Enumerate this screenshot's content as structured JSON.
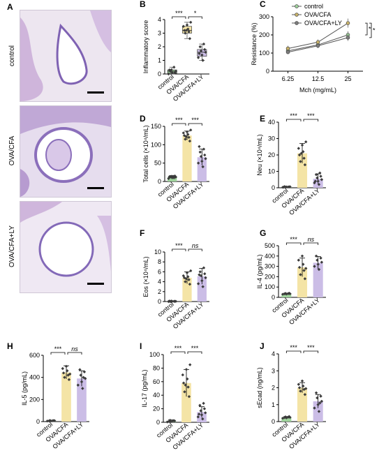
{
  "photo_panel": {
    "letter": "A",
    "rows": [
      "control",
      "OVA/CFA",
      "OVA/CFA+LY"
    ]
  },
  "colors": {
    "control": "#9fd39c",
    "ova_cfa": "#f4e4a6",
    "ova_cfa_ly": "#cbbde6",
    "dot": "#3b3b3b"
  },
  "chart_data": [
    {
      "id": "B",
      "type": "box",
      "ylabel": "Inflammatory score",
      "ylim": [
        0,
        4
      ],
      "yticks": [
        0,
        1,
        2,
        3,
        4
      ],
      "categories": [
        "control",
        "OVA/CFA",
        "OVA/CFA+LY"
      ],
      "boxes": [
        {
          "min": 0.0,
          "q1": 0.05,
          "median": 0.2,
          "q3": 0.3,
          "max": 0.5
        },
        {
          "min": 2.6,
          "q1": 3.0,
          "median": 3.2,
          "q3": 3.5,
          "max": 3.8
        },
        {
          "min": 1.0,
          "q1": 1.3,
          "median": 1.6,
          "q3": 1.8,
          "max": 2.2
        }
      ],
      "points": [
        [
          0.0,
          0.1,
          0.2,
          0.3,
          0.1,
          0.2,
          0.5,
          0.3
        ],
        [
          2.6,
          3.0,
          3.1,
          3.2,
          3.3,
          3.5,
          3.6,
          3.8,
          3.2
        ],
        [
          1.0,
          1.2,
          1.4,
          1.6,
          1.7,
          1.8,
          2.0,
          2.2,
          1.5
        ]
      ],
      "comparisons": [
        {
          "from": 0,
          "to": 1,
          "label": "***"
        },
        {
          "from": 1,
          "to": 2,
          "label": "*"
        }
      ]
    },
    {
      "id": "C",
      "type": "line",
      "xlabel": "Mch (mg/mL)",
      "ylabel": "Resistance (%)",
      "categories": [
        "6.25",
        "12.5",
        "25"
      ],
      "ylim": [
        0,
        300
      ],
      "yticks": [
        0,
        100,
        200,
        300
      ],
      "series": [
        {
          "name": "control",
          "values": [
            112,
            145,
            200
          ],
          "err": [
            15,
            15,
            20
          ],
          "color": "#9fd39c"
        },
        {
          "name": "OVA/CFA",
          "values": [
            125,
            160,
            265
          ],
          "err": [
            15,
            15,
            25
          ],
          "color": "#c9b36a"
        },
        {
          "name": "OVA/CFA+LY",
          "values": [
            105,
            140,
            185
          ],
          "err": [
            10,
            12,
            18
          ],
          "color": "#7d7d7d"
        }
      ],
      "comparisons": [
        {
          "from": 0,
          "to": 1,
          "label": "*"
        },
        {
          "from": 1,
          "to": 2,
          "label": "*"
        }
      ]
    },
    {
      "id": "D",
      "type": "bar",
      "ylabel": "Total cells (×10⁴/mL)",
      "ylim": [
        0,
        150
      ],
      "yticks": [
        0,
        50,
        100,
        150
      ],
      "categories": [
        "control",
        "OVA/CFA",
        "OVA/CFA+LY"
      ],
      "values": [
        12,
        125,
        66
      ],
      "err": [
        4,
        12,
        22
      ],
      "points": [
        [
          8,
          10,
          12,
          14,
          15,
          12,
          10,
          13,
          14
        ],
        [
          110,
          115,
          120,
          125,
          128,
          132,
          135,
          140,
          122
        ],
        [
          40,
          50,
          55,
          62,
          68,
          72,
          80,
          88,
          95
        ]
      ],
      "comparisons": [
        {
          "from": 0,
          "to": 1,
          "label": "***"
        },
        {
          "from": 1,
          "to": 2,
          "label": "***"
        }
      ]
    },
    {
      "id": "E",
      "type": "bar",
      "ylabel": "Neu (×10⁴/mL)",
      "ylim": [
        0,
        40
      ],
      "yticks": [
        0,
        10,
        20,
        30,
        40
      ],
      "categories": [
        "control",
        "OVA/CFA",
        "OVA/CFA+LY"
      ],
      "values": [
        0.5,
        21,
        5.5
      ],
      "err": [
        0.3,
        6,
        3
      ],
      "points": [
        [
          0.3,
          0.5,
          0.6,
          0.4,
          0.5,
          0.7,
          0.5,
          0.4
        ],
        [
          14,
          16,
          18,
          20,
          22,
          24,
          26,
          28,
          21
        ],
        [
          2,
          3,
          4,
          5,
          6,
          7,
          8,
          9,
          4
        ]
      ],
      "comparisons": [
        {
          "from": 0,
          "to": 1,
          "label": "***"
        },
        {
          "from": 1,
          "to": 2,
          "label": "***"
        }
      ]
    },
    {
      "id": "F",
      "type": "bar",
      "ylabel": "Eos (×10⁴/mL)",
      "ylim": [
        0,
        10
      ],
      "yticks": [
        0,
        2,
        4,
        6,
        8,
        10
      ],
      "categories": [
        "control",
        "OVA/CFA",
        "OVA/CFA+LY"
      ],
      "values": [
        0.05,
        4.8,
        5.1
      ],
      "err": [
        0.05,
        1.2,
        1.6
      ],
      "points": [
        [
          0.0,
          0.05,
          0.05,
          0.1,
          0.05,
          0.0,
          0.05,
          0.1
        ],
        [
          3.5,
          4.0,
          4.4,
          4.8,
          5.0,
          5.2,
          5.8,
          6.2,
          4.6
        ],
        [
          3.0,
          3.6,
          4.2,
          4.8,
          5.2,
          5.6,
          6.0,
          6.8,
          5.4
        ]
      ],
      "comparisons": [
        {
          "from": 0,
          "to": 1,
          "label": "***"
        },
        {
          "from": 1,
          "to": 2,
          "label": "ns"
        }
      ]
    },
    {
      "id": "G",
      "type": "bar",
      "ylabel": "IL-4 (pg/mL)",
      "ylim": [
        0,
        500
      ],
      "yticks": [
        0,
        100,
        200,
        300,
        400,
        500
      ],
      "categories": [
        "control",
        "OVA/CFA",
        "OVA/CFA+LY"
      ],
      "values": [
        35,
        290,
        335
      ],
      "err": [
        6,
        90,
        60
      ],
      "points": [
        [
          30,
          32,
          35,
          38,
          40,
          34,
          36
        ],
        [
          180,
          220,
          260,
          290,
          320,
          360,
          400,
          280
        ],
        [
          270,
          300,
          320,
          340,
          360,
          380,
          400
        ]
      ],
      "comparisons": [
        {
          "from": 0,
          "to": 1,
          "label": "***"
        },
        {
          "from": 1,
          "to": 2,
          "label": "ns"
        }
      ]
    },
    {
      "id": "H",
      "type": "bar",
      "ylabel": "IL-5 (pg/mL)",
      "ylim": [
        0,
        600
      ],
      "yticks": [
        0,
        200,
        400,
        600
      ],
      "categories": [
        "control",
        "OVA/CFA",
        "OVA/CFA+LY"
      ],
      "values": [
        8,
        445,
        390
      ],
      "err": [
        3,
        60,
        70
      ],
      "points": [
        [
          5,
          6,
          8,
          10,
          9,
          7,
          8
        ],
        [
          380,
          400,
          420,
          440,
          460,
          480,
          500,
          430
        ],
        [
          300,
          330,
          360,
          390,
          420,
          450,
          470,
          400
        ]
      ],
      "comparisons": [
        {
          "from": 0,
          "to": 1,
          "label": "***"
        },
        {
          "from": 1,
          "to": 2,
          "label": "ns"
        }
      ]
    },
    {
      "id": "I",
      "type": "bar",
      "ylabel": "IL-17 (pg/mL)",
      "ylim": [
        0,
        100
      ],
      "yticks": [
        0,
        20,
        40,
        60,
        80,
        100
      ],
      "categories": [
        "control",
        "OVA/CFA",
        "OVA/CFA+LY"
      ],
      "values": [
        2,
        58,
        15
      ],
      "err": [
        1.5,
        20,
        8
      ],
      "points": [
        [
          0.5,
          1,
          2,
          3,
          2.5,
          1.5,
          2
        ],
        [
          38,
          45,
          52,
          58,
          64,
          70,
          78,
          85,
          55
        ],
        [
          5,
          8,
          11,
          14,
          17,
          20,
          25,
          28,
          12
        ]
      ],
      "comparisons": [
        {
          "from": 0,
          "to": 1,
          "label": "***"
        },
        {
          "from": 1,
          "to": 2,
          "label": "***"
        }
      ]
    },
    {
      "id": "J",
      "type": "bar",
      "ylabel": "sEcad (ng/mL)",
      "ylim": [
        0,
        4
      ],
      "yticks": [
        0,
        1,
        2,
        3,
        4
      ],
      "categories": [
        "control",
        "OVA/CFA",
        "OVA/CFA+LY"
      ],
      "values": [
        0.25,
        2.0,
        1.2
      ],
      "err": [
        0.05,
        0.3,
        0.4
      ],
      "points": [
        [
          0.2,
          0.22,
          0.25,
          0.28,
          0.3,
          0.24,
          0.26
        ],
        [
          1.6,
          1.8,
          1.9,
          2.0,
          2.1,
          2.2,
          2.4,
          1.95
        ],
        [
          0.6,
          0.8,
          1.0,
          1.2,
          1.4,
          1.5,
          1.7,
          1.1
        ]
      ],
      "comparisons": [
        {
          "from": 0,
          "to": 1,
          "label": "***"
        },
        {
          "from": 1,
          "to": 2,
          "label": "***"
        }
      ]
    }
  ]
}
